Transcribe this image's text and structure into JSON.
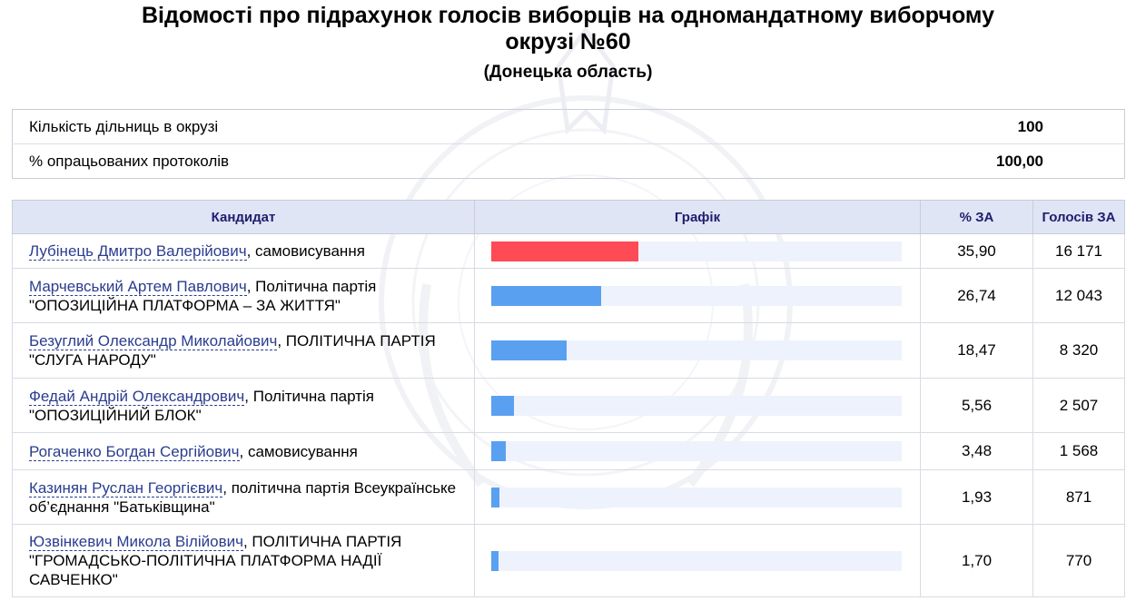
{
  "header": {
    "title": "Відомості про підрахунок голосів виборців на одномандатному виборчому окрузі №60",
    "region": "(Донецька область)"
  },
  "summary": {
    "rows": [
      {
        "label": "Кількість дільниць в окрузі",
        "value": "100"
      },
      {
        "label": "% опрацьованих протоколів",
        "value": "100,00"
      }
    ]
  },
  "results": {
    "columns": [
      "Кандидат",
      "Графік",
      "% ЗА",
      "Голосів ЗА"
    ],
    "colors": {
      "leader": "#ff4b55",
      "other": "#5aa0f0",
      "track": "#eef2fc"
    },
    "rows": [
      {
        "name": "Лубінець Дмитро Валерійович",
        "party": ", самовисування",
        "pct": "35,90",
        "votes": "16 171",
        "share": 35.9
      },
      {
        "name": "Марчевський Артем Павлович",
        "party": ", Політична партія \"ОПОЗИЦІЙНА ПЛАТФОРМА – ЗА ЖИТТЯ\"",
        "pct": "26,74",
        "votes": "12 043",
        "share": 26.74
      },
      {
        "name": "Безуглий Олександр Миколайович",
        "party": ", ПОЛІТИЧНА ПАРТІЯ \"СЛУГА НАРОДУ\"",
        "pct": "18,47",
        "votes": "8 320",
        "share": 18.47
      },
      {
        "name": "Федай Андрій Олександрович",
        "party": ", Політична партія \"ОПОЗИЦІЙНИЙ БЛОК\"",
        "pct": "5,56",
        "votes": "2 507",
        "share": 5.56
      },
      {
        "name": "Рогаченко Богдан Сергійович",
        "party": ", самовисування",
        "pct": "3,48",
        "votes": "1 568",
        "share": 3.48
      },
      {
        "name": "Казинян Руслан Георгієвич",
        "party": ", політична партія Всеукраїнське об’єднання \"Батьківщина\"",
        "pct": "1,93",
        "votes": "871",
        "share": 1.93
      },
      {
        "name": "Юзвінкевич Микола Вілійович",
        "party": ", ПОЛІТИЧНА ПАРТІЯ \"ГРОМАДСЬКО-ПОЛІТИЧНА ПЛАТФОРМА НАДІЇ САВЧЕНКО\"",
        "pct": "1,70",
        "votes": "770",
        "share": 1.7
      }
    ]
  }
}
